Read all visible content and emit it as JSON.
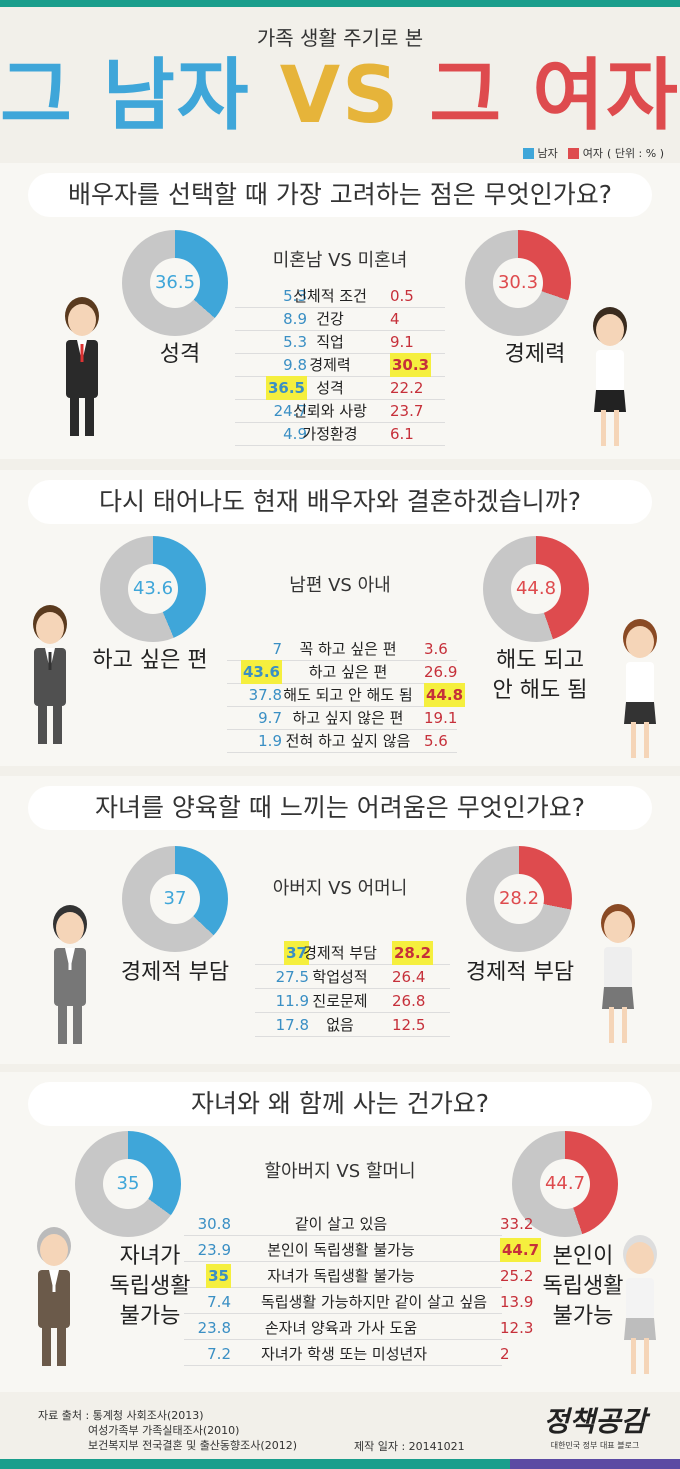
{
  "header": {
    "subtitle": "가족 생활 주기로 본",
    "title_male": "그 남자",
    "title_vs": "VS",
    "title_female": "그 여자"
  },
  "legend": {
    "male": "남자",
    "female": "여자",
    "unit": "( 단위 : % )",
    "male_color": "#3fa6d9",
    "female_color": "#de4b4e"
  },
  "sections": [
    {
      "question": "배우자를 선택할 때 가장 고려하는 점은 무엇인가요?",
      "male_group": "미혼남",
      "vs": "VS",
      "female_group": "미혼녀",
      "male_donut": {
        "value": "36.5",
        "label": "성격",
        "pct": 36.5
      },
      "female_donut": {
        "value": "30.3",
        "label": "경제력",
        "pct": 30.3
      },
      "rows": [
        {
          "m": "5.3",
          "label": "신체적 조건",
          "f": "0.5"
        },
        {
          "m": "8.9",
          "label": "건강",
          "f": "4"
        },
        {
          "m": "5.3",
          "label": "직업",
          "f": "9.1"
        },
        {
          "m": "9.8",
          "label": "경제력",
          "f": "30.3"
        },
        {
          "m": "36.5",
          "label": "성격",
          "f": "22.2"
        },
        {
          "m": "24.7",
          "label": "신뢰와 사랑",
          "f": "23.7"
        },
        {
          "m": "4.9",
          "label": "가정환경",
          "f": "6.1"
        }
      ]
    },
    {
      "question": "다시 태어나도 현재 배우자와 결혼하겠습니까?",
      "male_group": "남편",
      "vs": "VS",
      "female_group": "아내",
      "male_donut": {
        "value": "43.6",
        "label": "하고 싶은 편",
        "pct": 43.6
      },
      "female_donut": {
        "value": "44.8",
        "label": "해도 되고\n안 해도 됨",
        "pct": 44.8
      },
      "rows": [
        {
          "m": "7",
          "label": "꼭 하고 싶은 편",
          "f": "3.6"
        },
        {
          "m": "43.6",
          "label": "하고 싶은 편",
          "f": "26.9"
        },
        {
          "m": "37.8",
          "label": "해도 되고 안 해도 됨",
          "f": "44.8"
        },
        {
          "m": "9.7",
          "label": "하고 싶지 않은 편",
          "f": "19.1"
        },
        {
          "m": "1.9",
          "label": "전혀 하고 싶지 않음",
          "f": "5.6"
        }
      ]
    },
    {
      "question": "자녀를 양육할 때 느끼는 어려움은 무엇인가요?",
      "male_group": "아버지",
      "vs": "VS",
      "female_group": "어머니",
      "male_donut": {
        "value": "37",
        "label": "경제적 부담",
        "pct": 37
      },
      "female_donut": {
        "value": "28.2",
        "label": "경제적 부담",
        "pct": 28.2
      },
      "rows": [
        {
          "m": "37",
          "label": "경제적 부담",
          "f": "28.2"
        },
        {
          "m": "27.5",
          "label": "학업성적",
          "f": "26.4"
        },
        {
          "m": "11.9",
          "label": "진로문제",
          "f": "26.8"
        },
        {
          "m": "17.8",
          "label": "없음",
          "f": "12.5"
        }
      ]
    },
    {
      "question": "자녀와 왜 함께 사는 건가요?",
      "male_group": "할아버지",
      "vs": "VS",
      "female_group": "할머니",
      "male_donut": {
        "value": "35",
        "label": "자녀가\n독립생활\n불가능",
        "pct": 35
      },
      "female_donut": {
        "value": "44.7",
        "label": "본인이\n독립생활\n불가능",
        "pct": 44.7
      },
      "rows": [
        {
          "m": "30.8",
          "label": "같이 살고 있음",
          "f": "33.2"
        },
        {
          "m": "23.9",
          "label": "본인이 독립생활 불가능",
          "f": "44.7"
        },
        {
          "m": "35",
          "label": "자녀가 독립생활 불가능",
          "f": "25.2"
        },
        {
          "m": "7.4",
          "label": "독립생활 가능하지만 같이 살고 싶음",
          "f": "13.9"
        },
        {
          "m": "23.8",
          "label": "손자녀 양육과 가사 도움",
          "f": "12.3"
        },
        {
          "m": "7.2",
          "label": "자녀가 학생 또는 미성년자",
          "f": "2"
        }
      ]
    }
  ],
  "footer": {
    "source_label": "자료 출처 : 통계청 사회조사(2013)",
    "source_2": "여성가족부 가족실태조사(2010)",
    "source_3": "보건복지부 전국결혼 및 출산동향조사(2012)",
    "date": "제작 일자 : 20141021",
    "logo_main": "정책공감",
    "logo_sub": "대한민국 정부 대표 블로그"
  }
}
